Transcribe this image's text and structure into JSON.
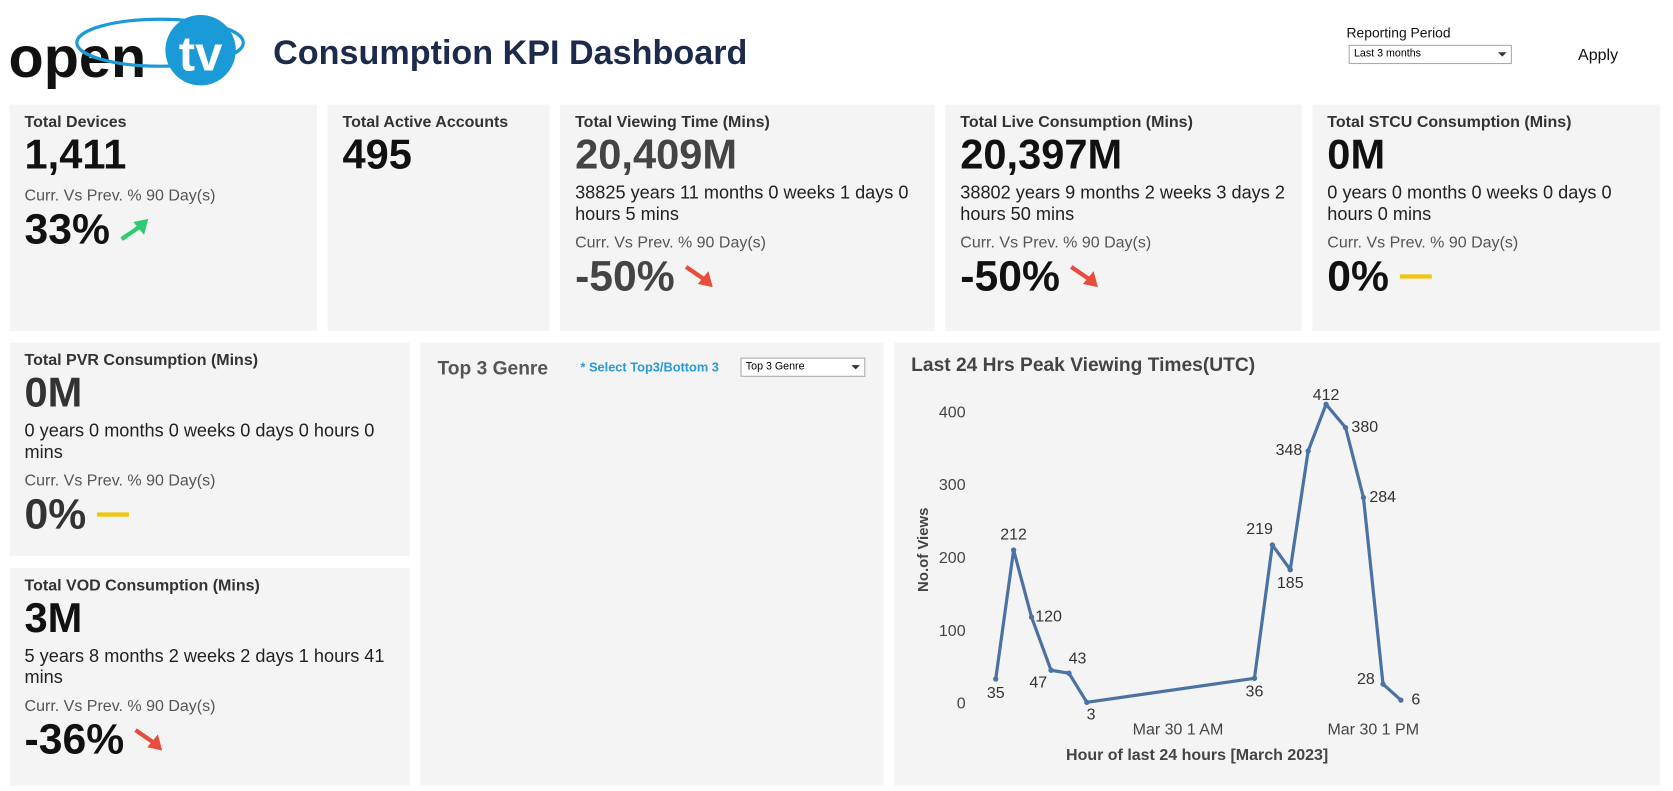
{
  "header": {
    "logo": [
      "open",
      "tv"
    ],
    "title": "Consumption KPI Dashboard",
    "period_label": "Reporting Period",
    "period": "Last 3 months",
    "apply": "Apply"
  },
  "kpis": [
    {
      "title": "Total Devices",
      "value": "1,411",
      "change_label": "Curr. Vs Prev. % 90  Day(s)",
      "change": "33%",
      "trend": "up"
    },
    {
      "title": "Total Active Accounts",
      "value": "495"
    },
    {
      "title": "Total Viewing Time (Mins)",
      "value": "20,409M",
      "duration": "38825 years 11 months 0 weeks 1 days 0 hours 5 mins",
      "change_label": "Curr. Vs Prev. % 90  Day(s)",
      "change": "-50%",
      "trend": "down"
    },
    {
      "title": "Total Live Consumption (Mins)",
      "value": "20,397M",
      "duration": "38802 years 9 months 2 weeks 3 days 2 hours 50 mins",
      "change_label": "Curr. Vs Prev. % 90  Day(s)",
      "change": "-50%",
      "trend": "down"
    },
    {
      "title": "Total STCU Consumption (Mins)",
      "value": "0M",
      "duration": "0 years 0 months 0 weeks 0 days 0 hours 0 mins",
      "change_label": "Curr. Vs Prev. % 90  Day(s)",
      "change": "0%",
      "trend": "flat"
    },
    {
      "title": "Total PVR Consumption (Mins)",
      "value": "0M",
      "duration": "0 years 0 months 0 weeks 0 days 0 hours 0 mins",
      "change_label": "Curr. Vs Prev. % 90  Day(s)",
      "change": "0%",
      "trend": "flat"
    },
    {
      "title": "Total VOD Consumption (Mins)",
      "value": "3M",
      "duration": "5 years 8 months 2 weeks 2 days 1 hours 41 mins",
      "change_label": "Curr. Vs Prev. % 90  Day(s)",
      "change": "-36%",
      "trend": "down"
    }
  ],
  "genre": {
    "title": "Top 3 Genre",
    "hint": "* Select Top3/Bottom 3",
    "selector": "Top 3 Genre"
  },
  "chart_data": {
    "type": "line",
    "title": "Last 24 Hrs Peak Viewing Times(UTC)",
    "x_label": "Hour of last 24 hours [March 2023]",
    "y_label": "No.of Views",
    "x": [
      -10.2,
      -9.1,
      -8.0,
      -6.8,
      -5.7,
      -4.6,
      5.7,
      6.8,
      7.9,
      9.0,
      10.1,
      11.3,
      12.4,
      13.6,
      14.7
    ],
    "values": [
      35,
      212,
      120,
      47,
      43,
      3,
      36,
      219,
      185,
      348,
      412,
      380,
      284,
      28,
      6
    ],
    "color": "#4a72a4",
    "xlim": [
      -11.5,
      16
    ],
    "xticks": [
      {
        "value": 1,
        "label": "Mar 30 1 AM"
      },
      {
        "value": 13,
        "label": "Mar 30 1 PM"
      }
    ],
    "ylim": [
      -15,
      425
    ],
    "yticks": [
      0,
      100,
      200,
      300,
      400
    ]
  }
}
